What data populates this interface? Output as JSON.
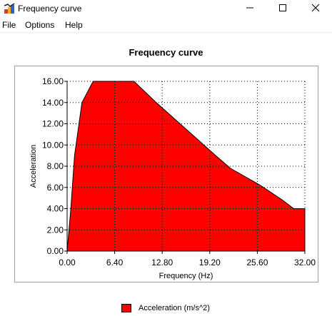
{
  "window": {
    "title": "Frequency curve"
  },
  "menu": [
    "File",
    "Options",
    "Help"
  ],
  "chart_data": {
    "type": "area",
    "title": "Frequency curve",
    "xlabel": "Frequency (Hz)",
    "ylabel": "Acceleration",
    "xlim": [
      0,
      32
    ],
    "ylim": [
      0,
      16
    ],
    "x_ticks": [
      "0.00",
      "6.40",
      "12.80",
      "19.20",
      "25.60",
      "32.00"
    ],
    "y_ticks": [
      "0.00",
      "2.00",
      "4.00",
      "6.00",
      "8.00",
      "10.00",
      "12.00",
      "14.00",
      "16.00"
    ],
    "grid": true,
    "legend_position": "bottom",
    "series": [
      {
        "name": "Acceleration (m/s^2)",
        "color": "#ff0000",
        "x": [
          0,
          0.5,
          1,
          2,
          3.5,
          6,
          8,
          9,
          12,
          16,
          20,
          22,
          26,
          29,
          30.5,
          32
        ],
        "y": [
          0,
          4,
          9,
          14,
          16,
          16,
          16,
          16,
          14,
          11.5,
          9,
          7.8,
          6.2,
          4.8,
          4,
          4
        ]
      }
    ]
  }
}
